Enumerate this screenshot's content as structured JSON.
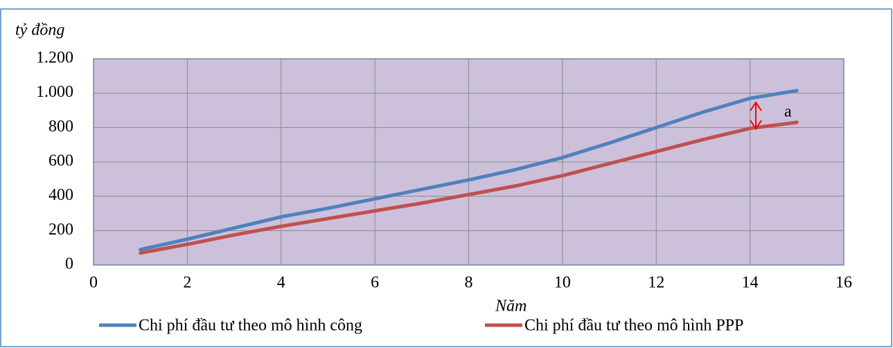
{
  "chart_data": {
    "type": "line",
    "y_label": "tỷ đồng",
    "x_label": "Năm",
    "annotation": "a",
    "x": [
      1,
      2,
      3,
      4,
      5,
      6,
      7,
      8,
      9,
      10,
      11,
      12,
      13,
      14,
      15
    ],
    "series": [
      {
        "name": "Chi phí đầu tư theo mô hình công",
        "color": "#4f81bd",
        "values": [
          90,
          150,
          215,
          280,
          330,
          385,
          440,
          495,
          555,
          625,
          710,
          800,
          890,
          970,
          1015
        ]
      },
      {
        "name": "Chi phí đầu tư theo mô hình PPP",
        "color": "#c0504d",
        "values": [
          70,
          120,
          175,
          225,
          270,
          315,
          360,
          410,
          460,
          520,
          590,
          660,
          730,
          795,
          830
        ]
      }
    ],
    "xlim": [
      0,
      16
    ],
    "xticks": [
      0,
      2,
      4,
      6,
      8,
      10,
      12,
      14,
      16
    ],
    "ylim": [
      0,
      1200
    ],
    "yticks": [
      0,
      200,
      400,
      600,
      800,
      {
        "value": 1000,
        "label": "1.000"
      },
      {
        "value": 1200,
        "label": "1.200"
      }
    ],
    "grid": true,
    "plot_background": "#ccc0da"
  }
}
